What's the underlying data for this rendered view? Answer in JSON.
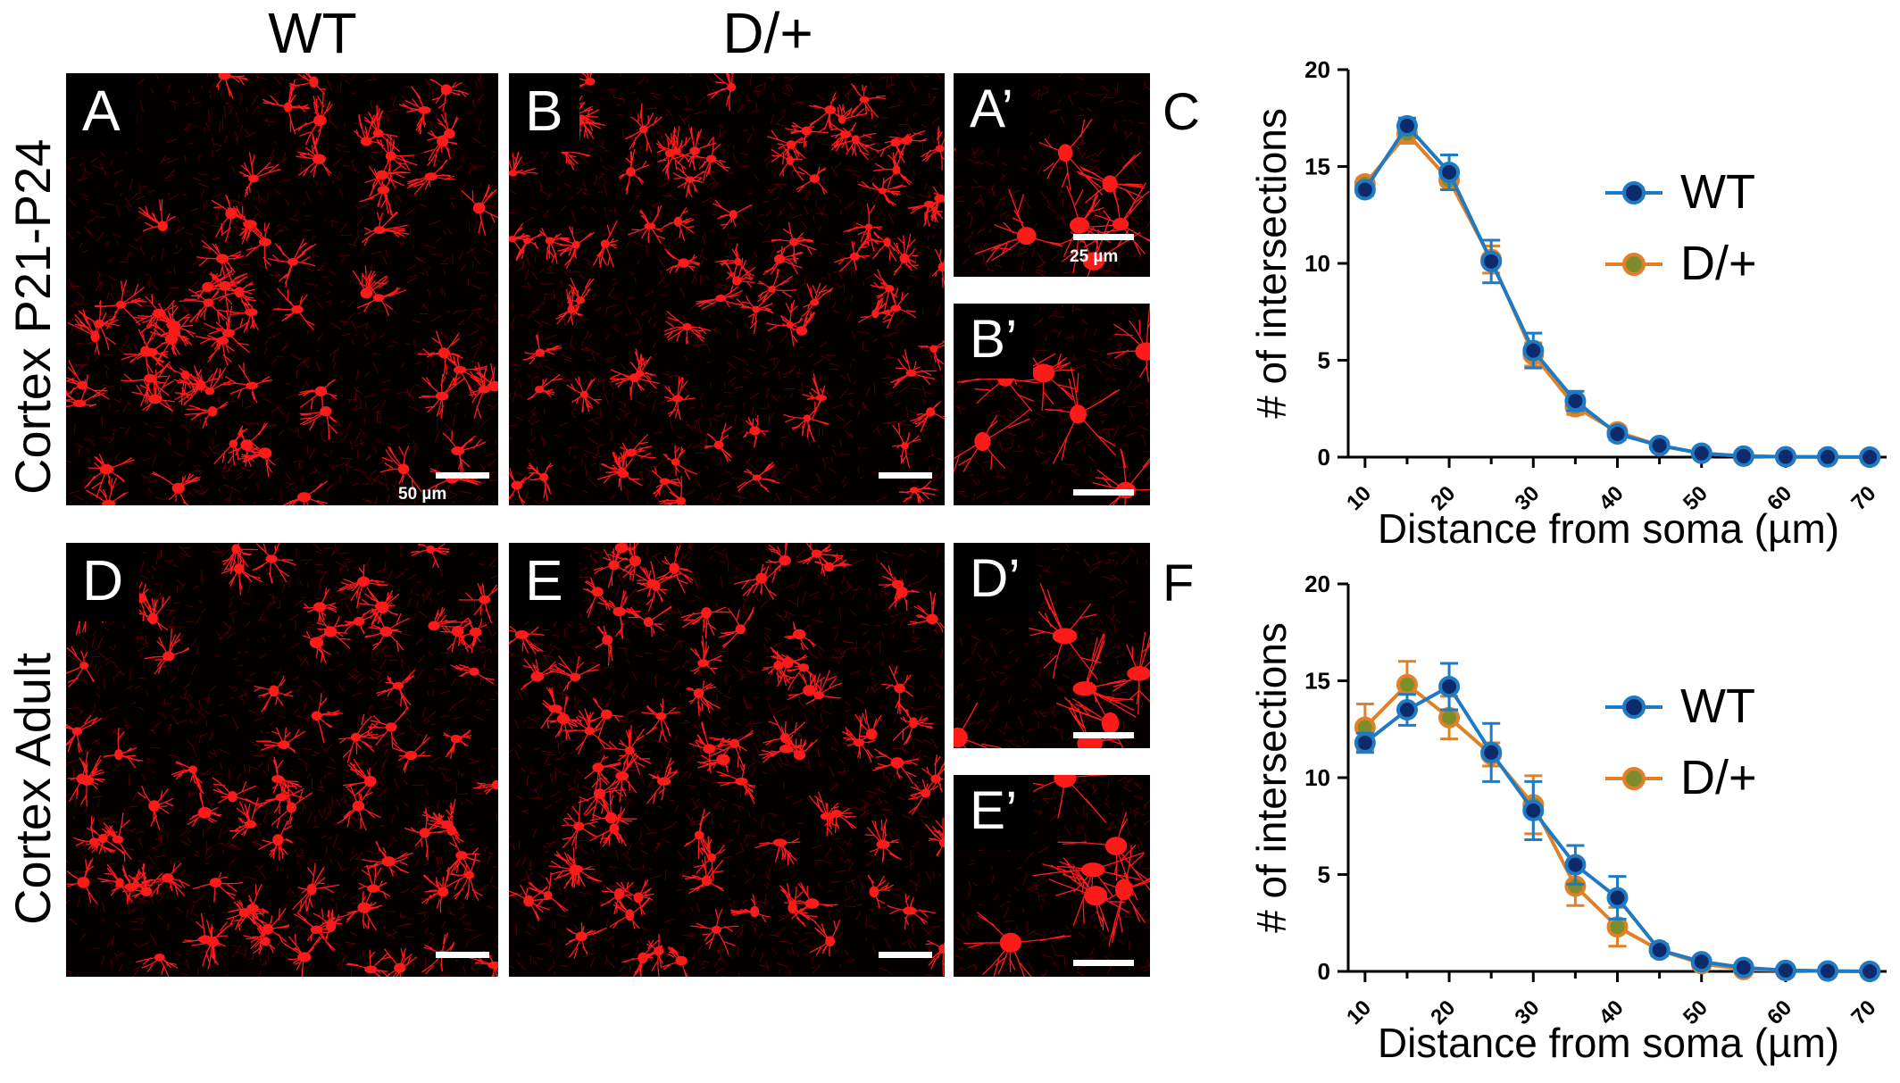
{
  "columns": {
    "wt": "WT",
    "dplus": "D/+"
  },
  "rows": {
    "top": "Cortex P21-P24",
    "bottom": "Cortex Adult"
  },
  "panels": {
    "A": "A",
    "B": "B",
    "D": "D",
    "E": "E",
    "A_prime": "A’",
    "B_prime": "B’",
    "D_prime": "D’",
    "E_prime": "E’",
    "C": "C",
    "F": "F"
  },
  "scale_labels": {
    "main": "50 µm",
    "inset": "25 µm"
  },
  "colors": {
    "wt": "#1f7ac4",
    "wt_marker": "#0d2a6b",
    "dplus": "#e0812a",
    "dplus_marker": "#7e8d2c",
    "cell": "#ff1a1a"
  },
  "chart_data": [
    {
      "panel": "C",
      "type": "line",
      "xlabel": "Distance from soma (µm)",
      "ylabel": "# of intersections",
      "x": [
        10,
        15,
        20,
        25,
        30,
        35,
        40,
        45,
        50,
        55,
        60,
        65,
        70
      ],
      "xticks": [
        10,
        20,
        30,
        40,
        50,
        60,
        70
      ],
      "yticks": [
        0,
        5,
        10,
        15,
        20
      ],
      "xlim": [
        8,
        72
      ],
      "ylim": [
        0,
        20
      ],
      "legend": "top-right",
      "series": [
        {
          "name": "WT",
          "values": [
            13.8,
            17.1,
            14.7,
            10.1,
            5.5,
            2.9,
            1.2,
            0.6,
            0.2,
            0.05,
            0.02,
            0.01,
            0.0
          ],
          "err": [
            0.3,
            0.4,
            0.9,
            1.1,
            0.9,
            0.5,
            0.3,
            0.2,
            0.1,
            0.05,
            0.02,
            0.01,
            0.0
          ]
        },
        {
          "name": "D/+",
          "values": [
            14.1,
            16.7,
            14.3,
            10.2,
            5.3,
            2.6,
            1.3,
            0.6,
            0.2,
            0.05,
            0.02,
            0.01,
            0.0
          ],
          "err": [
            0.3,
            0.5,
            0.5,
            0.7,
            0.6,
            0.4,
            0.3,
            0.2,
            0.1,
            0.05,
            0.02,
            0.01,
            0.0
          ]
        }
      ]
    },
    {
      "panel": "F",
      "type": "line",
      "xlabel": "Distance from soma (µm)",
      "ylabel": "# of intersections",
      "x": [
        10,
        15,
        20,
        25,
        30,
        35,
        40,
        45,
        50,
        55,
        60,
        65,
        70
      ],
      "xticks": [
        10,
        20,
        30,
        40,
        50,
        60,
        70
      ],
      "yticks": [
        0,
        5,
        10,
        15,
        20
      ],
      "xlim": [
        8,
        72
      ],
      "ylim": [
        0,
        20
      ],
      "legend": "top-right",
      "series": [
        {
          "name": "WT",
          "values": [
            11.8,
            13.5,
            14.7,
            11.3,
            8.3,
            5.5,
            3.8,
            1.1,
            0.5,
            0.2,
            0.05,
            0.02,
            0.0
          ],
          "err": [
            0.5,
            0.8,
            1.2,
            1.5,
            1.5,
            1.0,
            1.1,
            0.3,
            0.2,
            0.1,
            0.05,
            0.02,
            0.0
          ]
        },
        {
          "name": "D/+",
          "values": [
            12.6,
            14.8,
            13.1,
            11.2,
            8.6,
            4.4,
            2.3,
            1.1,
            0.4,
            0.1,
            0.05,
            0.02,
            0.0
          ],
          "err": [
            1.2,
            1.2,
            1.1,
            0.6,
            1.5,
            1.0,
            1.0,
            0.3,
            0.2,
            0.1,
            0.05,
            0.02,
            0.0
          ]
        }
      ]
    }
  ]
}
